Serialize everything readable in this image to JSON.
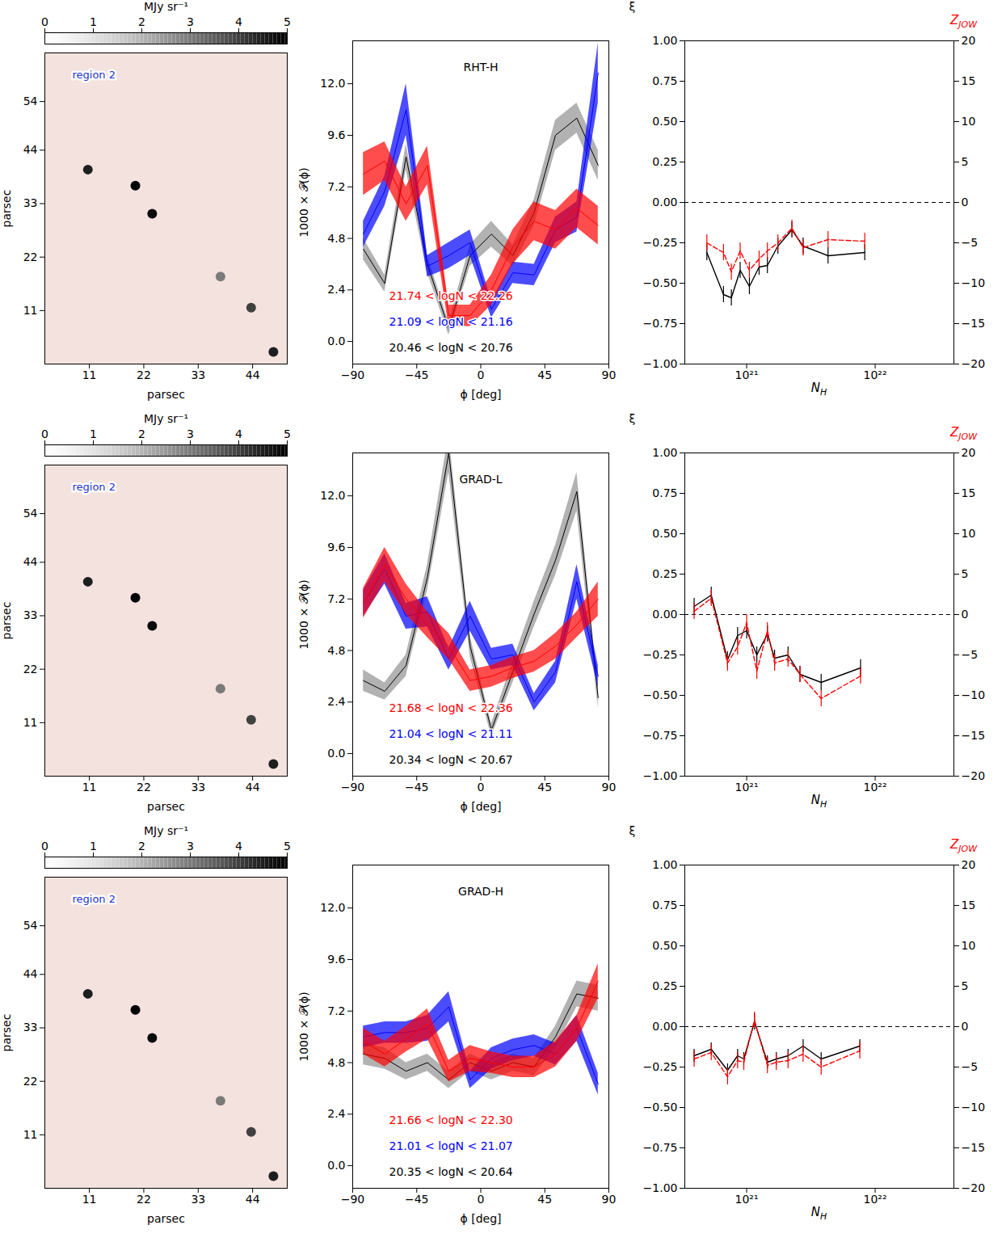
{
  "chart_data": [
    {
      "type": "image",
      "annotation": "region 2",
      "colorbar_label": "MJy sr⁻¹",
      "colorbar_lim": [
        0,
        5
      ],
      "colorbar_ticks": [
        0,
        1,
        2,
        3,
        4,
        5
      ],
      "xlabel": "parsec",
      "ylabel": "parsec",
      "xlim": [
        2,
        51
      ],
      "ylim": [
        0,
        64
      ],
      "xticks": [
        11,
        22,
        33,
        44
      ],
      "yticks": [
        11,
        22,
        33,
        44,
        54
      ],
      "sources": [
        {
          "x": 10.7,
          "y": 40,
          "value": 4.5
        },
        {
          "x": 20.3,
          "y": 36.7,
          "value": 5
        },
        {
          "x": 23.7,
          "y": 30.9,
          "value": 4.8
        },
        {
          "x": 37.5,
          "y": 18,
          "value": 3
        },
        {
          "x": 43.7,
          "y": 11.6,
          "value": 4
        },
        {
          "x": 48.2,
          "y": 2.5,
          "value": 4.5
        }
      ]
    },
    {
      "type": "line",
      "title": "RHT-H",
      "xlabel": "ϕ [deg]",
      "ylabel": "1000 × 𝒫(ϕ)",
      "xlim": [
        -90,
        90
      ],
      "ylim": [
        -1.05,
        14
      ],
      "xticks": [
        {
          "value": -90,
          "label": "−90"
        },
        {
          "value": -45,
          "label": "−45"
        },
        0,
        45,
        90
      ],
      "yticks": [
        {
          "value": 0,
          "label": "0.0"
        },
        2.4,
        4.8,
        7.2,
        9.6,
        {
          "value": 12,
          "label": "12.0"
        }
      ],
      "x": [
        -82.5,
        -67.5,
        -52.5,
        -37.5,
        -22.5,
        -7.5,
        7.5,
        22.5,
        37.5,
        52.5,
        67.5,
        82.5
      ],
      "series": [
        {
          "name": "21.74 < logN < 22.26",
          "color": "#ff0000",
          "values": [
            7.8,
            8.4,
            6.4,
            8.2,
            1.2,
            1.2,
            2.4,
            4.4,
            5.6,
            5.2,
            6.2,
            5.4
          ],
          "err": [
            1.0,
            0.9,
            0.8,
            0.9,
            0.5,
            0.5,
            0.7,
            0.8,
            0.9,
            0.9,
            0.9,
            0.9
          ]
        },
        {
          "name": "21.09 < logN < 21.16",
          "color": "#0000ff",
          "values": [
            5.0,
            7.0,
            10.8,
            3.5,
            4.0,
            4.6,
            1.5,
            3.2,
            3.1,
            5.2,
            5.8,
            12.5
          ],
          "err": [
            0.6,
            0.7,
            1.2,
            0.5,
            0.6,
            0.6,
            0.4,
            0.5,
            0.5,
            0.6,
            0.7,
            1.4
          ]
        },
        {
          "name": "20.46 < logN < 20.76",
          "color": "#000000",
          "values": [
            4.3,
            2.7,
            8.6,
            3.6,
            0.6,
            4.0,
            5.0,
            4.0,
            6.0,
            9.6,
            10.4,
            8.2
          ],
          "err": [
            0.5,
            0.4,
            0.6,
            0.4,
            0.3,
            0.5,
            0.6,
            0.5,
            0.6,
            0.7,
            0.7,
            0.7
          ]
        }
      ]
    },
    {
      "type": "line",
      "xlabel": "NH",
      "ylabel": "ξ",
      "y2label": "ZJOW",
      "log": "x",
      "xlim": [
        3.3e+20,
        4.1e+22
      ],
      "xticks": [
        {
          "value": 1e+21,
          "label": "10²¹"
        },
        {
          "value": 1e+22,
          "label": "10²²"
        }
      ],
      "ylim": [
        -1,
        1
      ],
      "yticks": [
        {
          "value": -1,
          "label": "−1.00"
        },
        {
          "value": -0.75,
          "label": "−0.75"
        },
        {
          "value": -0.5,
          "label": "−0.50"
        },
        {
          "value": -0.25,
          "label": "−0.25"
        },
        {
          "value": 0,
          "label": "0.00"
        },
        {
          "value": 0.25,
          "label": "0.25"
        },
        {
          "value": 0.5,
          "label": "0.50"
        },
        {
          "value": 0.75,
          "label": "0.75"
        },
        {
          "value": 1,
          "label": "1.00"
        }
      ],
      "y2lim": [
        -20,
        20
      ],
      "y2ticks": [
        {
          "value": -20,
          "label": "−20"
        },
        {
          "value": -15,
          "label": "−15"
        },
        {
          "value": -10,
          "label": "−10"
        },
        {
          "value": -5,
          "label": "−5"
        },
        0,
        5,
        10,
        15,
        20
      ],
      "reference_line": 0,
      "x": [
        4.9e+20,
        6.6e+20,
        7.6e+20,
        8.9e+20,
        1.05e+21,
        1.25e+21,
        1.45e+21,
        1.75e+21,
        2.25e+21,
        2.75e+21,
        4.3e+21,
        8.3e+21
      ],
      "series": [
        {
          "name": "ξ",
          "color": "#000000",
          "line_style": "solid",
          "values": [
            -0.31,
            -0.57,
            -0.59,
            -0.42,
            -0.52,
            -0.4,
            -0.39,
            -0.27,
            -0.17,
            -0.27,
            -0.33,
            -0.31
          ],
          "err": [
            0.05,
            0.05,
            0.05,
            0.05,
            0.05,
            0.05,
            0.05,
            0.05,
            0.05,
            0.05,
            0.05,
            0.05
          ]
        },
        {
          "name": "ZJOW",
          "color": "#ff0000",
          "line_style": "dashed",
          "axis": "y2",
          "values": [
            -5.0,
            -6.2,
            -8.6,
            -6.0,
            -8.4,
            -7.0,
            -6.0,
            -5.0,
            -3.2,
            -5.6,
            -4.6,
            -4.8
          ],
          "err": [
            1,
            1,
            1,
            1,
            1,
            1,
            1,
            1,
            1,
            1,
            1,
            1
          ]
        }
      ]
    },
    {
      "type": "image",
      "annotation": "region 2",
      "colorbar_label": "MJy sr⁻¹",
      "colorbar_lim": [
        0,
        5
      ],
      "colorbar_ticks": [
        0,
        1,
        2,
        3,
        4,
        5
      ],
      "xlabel": "parsec",
      "ylabel": "parsec",
      "xlim": [
        2,
        51
      ],
      "ylim": [
        0,
        64
      ],
      "xticks": [
        11,
        22,
        33,
        44
      ],
      "yticks": [
        11,
        22,
        33,
        44,
        54
      ],
      "sources": [
        {
          "x": 10.7,
          "y": 40,
          "value": 4.5
        },
        {
          "x": 20.3,
          "y": 36.7,
          "value": 5
        },
        {
          "x": 23.7,
          "y": 30.9,
          "value": 4.8
        },
        {
          "x": 37.5,
          "y": 18,
          "value": 3
        },
        {
          "x": 43.7,
          "y": 11.6,
          "value": 4
        },
        {
          "x": 48.2,
          "y": 2.5,
          "value": 4.5
        }
      ]
    },
    {
      "type": "line",
      "title": "GRAD-L",
      "xlabel": "ϕ [deg]",
      "ylabel": "1000 × 𝒫(ϕ)",
      "xlim": [
        -90,
        90
      ],
      "ylim": [
        -1.05,
        14
      ],
      "xticks": [
        {
          "value": -90,
          "label": "−90"
        },
        {
          "value": -45,
          "label": "−45"
        },
        0,
        45,
        90
      ],
      "yticks": [
        {
          "value": 0,
          "label": "0.0"
        },
        2.4,
        4.8,
        7.2,
        9.6,
        {
          "value": 12,
          "label": "12.0"
        }
      ],
      "x": [
        -82.5,
        -67.5,
        -52.5,
        -37.5,
        -22.5,
        -7.5,
        7.5,
        22.5,
        37.5,
        52.5,
        67.5,
        82.5
      ],
      "series": [
        {
          "name": "21.68 < logN < 22.36",
          "color": "#ff0000",
          "values": [
            7.0,
            8.8,
            7.2,
            6.0,
            5.0,
            3.4,
            3.6,
            4.0,
            4.3,
            5.0,
            6.0,
            7.2
          ],
          "err": [
            0.7,
            0.8,
            0.7,
            0.6,
            0.6,
            0.5,
            0.5,
            0.5,
            0.5,
            0.6,
            0.6,
            0.8
          ]
        },
        {
          "name": "21.04 < logN < 21.11",
          "color": "#0000ff",
          "values": [
            7.0,
            8.6,
            6.4,
            6.6,
            4.4,
            6.4,
            4.4,
            4.6,
            2.4,
            3.8,
            8.0,
            3.6
          ],
          "err": [
            0.6,
            0.7,
            0.6,
            0.7,
            0.5,
            0.7,
            0.5,
            0.5,
            0.4,
            0.5,
            0.8,
            0.5
          ]
        },
        {
          "name": "20.34 < logN < 20.67",
          "color": "#000000",
          "values": [
            3.4,
            2.9,
            4.1,
            8.2,
            14.0,
            5.0,
            1.1,
            3.8,
            6.5,
            9.0,
            12.2,
            2.6
          ],
          "err": [
            0.5,
            0.4,
            0.5,
            0.6,
            0.9,
            0.5,
            0.3,
            0.5,
            0.6,
            0.7,
            0.9,
            0.5
          ]
        }
      ]
    },
    {
      "type": "line",
      "xlabel": "NH",
      "ylabel": "ξ",
      "y2label": "ZJOW",
      "log": "x",
      "xlim": [
        3.3e+20,
        4.1e+22
      ],
      "xticks": [
        {
          "value": 1e+21,
          "label": "10²¹"
        },
        {
          "value": 1e+22,
          "label": "10²²"
        }
      ],
      "ylim": [
        -1,
        1
      ],
      "yticks": [
        {
          "value": -1,
          "label": "−1.00"
        },
        {
          "value": -0.75,
          "label": "−0.75"
        },
        {
          "value": -0.5,
          "label": "−0.50"
        },
        {
          "value": -0.25,
          "label": "−0.25"
        },
        {
          "value": 0,
          "label": "0.00"
        },
        {
          "value": 0.25,
          "label": "0.25"
        },
        {
          "value": 0.5,
          "label": "0.50"
        },
        {
          "value": 0.75,
          "label": "0.75"
        },
        {
          "value": 1,
          "label": "1.00"
        }
      ],
      "y2lim": [
        -20,
        20
      ],
      "y2ticks": [
        {
          "value": -20,
          "label": "−20"
        },
        {
          "value": -15,
          "label": "−15"
        },
        {
          "value": -10,
          "label": "−10"
        },
        {
          "value": -5,
          "label": "−5"
        },
        0,
        5,
        10,
        15,
        20
      ],
      "reference_line": 0,
      "x": [
        3.9e+20,
        5.3e+20,
        7.1e+20,
        8.5e+20,
        1e+21,
        1.2e+21,
        1.45e+21,
        1.65e+21,
        2.1e+21,
        2.6e+21,
        3.8e+21,
        7.7e+21
      ],
      "series": [
        {
          "name": "ξ",
          "color": "#000000",
          "line_style": "solid",
          "values": [
            0.05,
            0.12,
            -0.28,
            -0.13,
            -0.1,
            -0.25,
            -0.12,
            -0.27,
            -0.25,
            -0.37,
            -0.42,
            -0.33
          ],
          "err": [
            0.05,
            0.05,
            0.05,
            0.05,
            0.05,
            0.05,
            0.05,
            0.05,
            0.05,
            0.05,
            0.05,
            0.05
          ]
        },
        {
          "name": "ZJOW",
          "color": "#ff0000",
          "line_style": "dashed",
          "axis": "y2",
          "values": [
            0.4,
            2.0,
            -6.0,
            -4.0,
            -1.0,
            -7.0,
            -2.0,
            -6.0,
            -5.5,
            -7.4,
            -10.4,
            -7.6
          ],
          "err": [
            1,
            1,
            1,
            1,
            1,
            1,
            1,
            1,
            1,
            1,
            1,
            1
          ]
        }
      ]
    },
    {
      "type": "image",
      "annotation": "region 2",
      "colorbar_label": "MJy sr⁻¹",
      "colorbar_lim": [
        0,
        5
      ],
      "colorbar_ticks": [
        0,
        1,
        2,
        3,
        4,
        5
      ],
      "xlabel": "parsec",
      "ylabel": "parsec",
      "xlim": [
        2,
        51
      ],
      "ylim": [
        0,
        64
      ],
      "xticks": [
        11,
        22,
        33,
        44
      ],
      "yticks": [
        11,
        22,
        33,
        44,
        54
      ],
      "sources": [
        {
          "x": 10.7,
          "y": 40,
          "value": 4.5
        },
        {
          "x": 20.3,
          "y": 36.7,
          "value": 5
        },
        {
          "x": 23.7,
          "y": 30.9,
          "value": 4.8
        },
        {
          "x": 37.5,
          "y": 18,
          "value": 3
        },
        {
          "x": 43.7,
          "y": 11.6,
          "value": 4
        },
        {
          "x": 48.2,
          "y": 2.5,
          "value": 4.5
        }
      ]
    },
    {
      "type": "line",
      "title": "GRAD-H",
      "xlabel": "ϕ [deg]",
      "ylabel": "1000 × 𝒫(ϕ)",
      "xlim": [
        -90,
        90
      ],
      "ylim": [
        -1.05,
        14
      ],
      "xticks": [
        {
          "value": -90,
          "label": "−90"
        },
        {
          "value": -45,
          "label": "−45"
        },
        0,
        45,
        90
      ],
      "yticks": [
        {
          "value": 0,
          "label": "0.0"
        },
        2.4,
        4.8,
        7.2,
        9.6,
        {
          "value": 12,
          "label": "12.0"
        }
      ],
      "x": [
        -82.5,
        -67.5,
        -52.5,
        -37.5,
        -22.5,
        -7.5,
        7.5,
        22.5,
        37.5,
        52.5,
        67.5,
        82.5
      ],
      "series": [
        {
          "name": "21.66 < logN < 22.30",
          "color": "#ff0000",
          "values": [
            5.8,
            5.2,
            5.9,
            6.6,
            4.4,
            5.0,
            4.8,
            4.6,
            4.6,
            5.2,
            6.4,
            8.6
          ],
          "err": [
            0.6,
            0.6,
            0.6,
            0.7,
            0.5,
            0.6,
            0.5,
            0.5,
            0.5,
            0.6,
            0.6,
            0.8
          ]
        },
        {
          "name": "21.01 < logN < 21.07",
          "color": "#0000ff",
          "values": [
            6.0,
            6.2,
            6.2,
            6.4,
            7.4,
            4.0,
            5.0,
            5.4,
            5.6,
            5.2,
            6.4,
            3.8
          ],
          "err": [
            0.5,
            0.5,
            0.5,
            0.6,
            0.7,
            0.4,
            0.5,
            0.5,
            0.5,
            0.5,
            0.6,
            0.5
          ]
        },
        {
          "name": "20.35 < logN < 20.64",
          "color": "#000000",
          "values": [
            5.2,
            5.0,
            4.4,
            4.8,
            4.0,
            4.8,
            4.4,
            4.8,
            4.6,
            6.0,
            8.0,
            7.8
          ],
          "err": [
            0.5,
            0.5,
            0.4,
            0.4,
            0.4,
            0.4,
            0.4,
            0.4,
            0.4,
            0.5,
            0.6,
            0.6
          ]
        }
      ]
    },
    {
      "type": "line",
      "xlabel": "NH",
      "ylabel": "ξ",
      "y2label": "ZJOW",
      "log": "x",
      "xlim": [
        3.3e+20,
        4.1e+22
      ],
      "xticks": [
        {
          "value": 1e+21,
          "label": "10²¹"
        },
        {
          "value": 1e+22,
          "label": "10²²"
        }
      ],
      "ylim": [
        -1,
        1
      ],
      "yticks": [
        {
          "value": -1,
          "label": "−1.00"
        },
        {
          "value": -0.75,
          "label": "−0.75"
        },
        {
          "value": -0.5,
          "label": "−0.50"
        },
        {
          "value": -0.25,
          "label": "−0.25"
        },
        {
          "value": 0,
          "label": "0.00"
        },
        {
          "value": 0.25,
          "label": "0.25"
        },
        {
          "value": 0.5,
          "label": "0.50"
        },
        {
          "value": 0.75,
          "label": "0.75"
        },
        {
          "value": 1,
          "label": "1.00"
        }
      ],
      "y2lim": [
        -20,
        20
      ],
      "y2ticks": [
        {
          "value": -20,
          "label": "−20"
        },
        {
          "value": -15,
          "label": "−15"
        },
        {
          "value": -10,
          "label": "−10"
        },
        {
          "value": -5,
          "label": "−5"
        },
        0,
        5,
        10,
        15,
        20
      ],
      "reference_line": 0,
      "x": [
        3.9e+20,
        5.3e+20,
        7.1e+20,
        8.5e+20,
        9.5e+20,
        1.15e+21,
        1.45e+21,
        1.7e+21,
        2.1e+21,
        2.75e+21,
        3.8e+21,
        7.6e+21
      ],
      "series": [
        {
          "name": "ξ",
          "color": "#000000",
          "line_style": "solid",
          "values": [
            -0.18,
            -0.14,
            -0.27,
            -0.18,
            -0.2,
            0.03,
            -0.22,
            -0.2,
            -0.18,
            -0.12,
            -0.2,
            -0.12
          ],
          "err": [
            0.04,
            0.04,
            0.04,
            0.04,
            0.04,
            0.05,
            0.04,
            0.04,
            0.04,
            0.04,
            0.04,
            0.04
          ]
        },
        {
          "name": "ZJOW",
          "color": "#ff0000",
          "line_style": "dashed",
          "axis": "y2",
          "values": [
            -4.0,
            -3.2,
            -6.2,
            -4.2,
            -4.4,
            0.8,
            -4.8,
            -4.4,
            -4.2,
            -3.4,
            -5.0,
            -3.0
          ],
          "err": [
            1,
            1,
            1,
            1,
            1,
            1,
            1,
            1,
            1,
            1,
            1,
            1
          ]
        }
      ]
    }
  ]
}
